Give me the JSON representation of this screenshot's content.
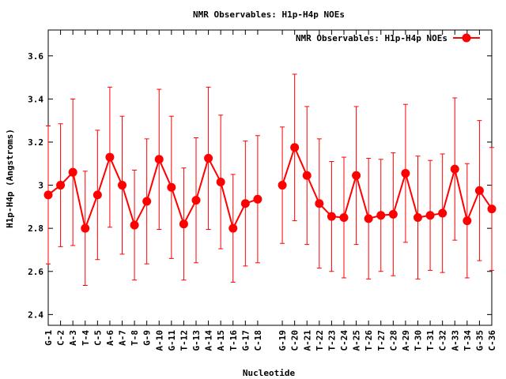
{
  "chart_data": {
    "type": "line",
    "title": "NMR Observables: H1p-H4p NOEs",
    "xlabel": "Nucleotide",
    "ylabel": "H1p-H4p (Angstroms)",
    "ylim": [
      2.35,
      3.72
    ],
    "yticks": [
      "2.4",
      "2.6",
      "2.8",
      "3",
      "3.2",
      "3.4",
      "3.6"
    ],
    "grid": false,
    "legend": "top-right",
    "color": "#ff0000",
    "categories": [
      "G-1",
      "C-2",
      "A-3",
      "T-4",
      "C-5",
      "A-6",
      "A-7",
      "T-8",
      "G-9",
      "A-10",
      "G-11",
      "T-12",
      "G-13",
      "A-14",
      "A-15",
      "T-16",
      "G-17",
      "C-18",
      "G-19",
      "C-20",
      "A-21",
      "T-22",
      "T-23",
      "C-24",
      "A-25",
      "T-26",
      "T-27",
      "C-28",
      "A-29",
      "T-30",
      "T-31",
      "C-32",
      "A-33",
      "T-34",
      "G-35",
      "C-36"
    ],
    "series": [
      {
        "name": "NMR Observables: H1p-H4p NOEs",
        "segments": [
          {
            "indices": [
              1,
              2,
              3,
              4,
              5,
              6,
              7,
              8,
              9,
              10,
              11,
              12,
              13,
              14,
              15,
              16,
              17,
              18
            ],
            "values": [
              2.955,
              3.0,
              3.06,
              2.8,
              2.955,
              3.13,
              3.0,
              2.815,
              2.925,
              3.12,
              2.99,
              2.82,
              2.93,
              3.125,
              3.015,
              2.8,
              2.915,
              2.935
            ],
            "errors": [
              0.32,
              0.285,
              0.34,
              0.265,
              0.3,
              0.325,
              0.32,
              0.255,
              0.29,
              0.325,
              0.33,
              0.26,
              0.29,
              0.33,
              0.31,
              0.25,
              0.29,
              0.295
            ]
          },
          {
            "indices": [
              20,
              21,
              22,
              23,
              24,
              25,
              26,
              27,
              28,
              29,
              30,
              31,
              32,
              33,
              34,
              35,
              36,
              37
            ],
            "values": [
              3.0,
              3.175,
              3.045,
              2.915,
              2.855,
              2.85,
              3.045,
              2.845,
              2.86,
              2.865,
              3.055,
              2.85,
              2.86,
              2.87,
              3.075,
              2.835,
              2.975,
              2.89
            ],
            "errors": [
              0.27,
              0.34,
              0.32,
              0.3,
              0.255,
              0.28,
              0.32,
              0.28,
              0.26,
              0.285,
              0.32,
              0.285,
              0.255,
              0.275,
              0.33,
              0.265,
              0.325,
              0.285
            ]
          }
        ]
      }
    ]
  }
}
